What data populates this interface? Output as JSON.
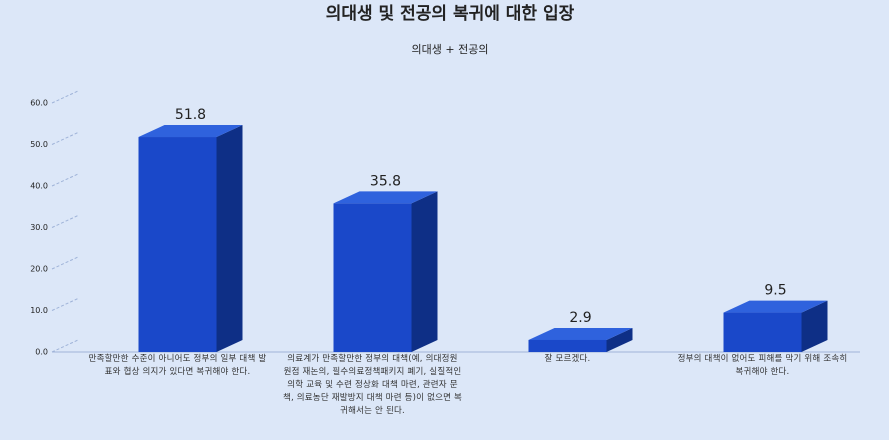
{
  "chart_data": {
    "type": "bar3d",
    "title": "의대생 및 전공의 복귀에 대한 입장",
    "subtitle": "의대생 + 전공의",
    "categories": [
      "만족할만한 수준이 아니어도 정부의 일부 대책 발표와 협상 의지가 있다면 복귀해야 한다.",
      "의료계가 만족할만한 정부의 대책(예, 의대정원 원점 재논의, 필수의료정책패키지 폐기, 실질적인 의학 교육 및 수련 정상화 대책 마련, 관련자 문책, 의료농단 재발방지 대책 마련 등)이 없으면 복귀해서는 안 된다.",
      "잘 모르겠다.",
      "정부의 대책이 없어도 피해를 막기 위해 조속히 복귀해야 한다."
    ],
    "values": [
      51.8,
      35.8,
      2.9,
      9.5
    ],
    "color": "#1a48c9",
    "ylim": [
      0,
      60
    ],
    "yticks": [
      {
        "value": 0,
        "label": "0.0"
      },
      {
        "value": 10,
        "label": "10.0"
      },
      {
        "value": 20,
        "label": "20.0"
      },
      {
        "value": 30,
        "label": "30.0"
      },
      {
        "value": 40,
        "label": "40.0"
      },
      {
        "value": 50,
        "label": "50.0"
      },
      {
        "value": 60,
        "label": "60.0"
      }
    ],
    "grid": true
  }
}
